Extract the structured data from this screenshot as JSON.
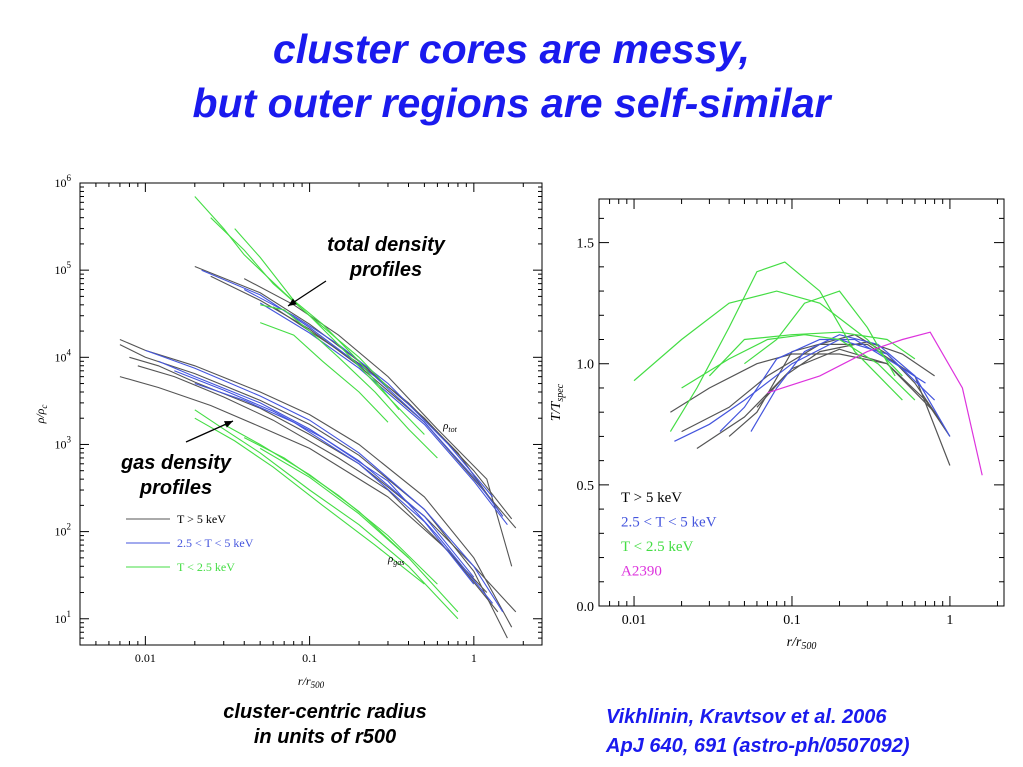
{
  "slide": {
    "title_line1": "cluster cores are messy,",
    "title_line2": "but outer regions are self-similar",
    "note_total_line1": "total density",
    "note_total_line2": "profiles",
    "note_gas_line1": "gas density",
    "note_gas_line2": "profiles",
    "caption_line1": "cluster-centric radius",
    "caption_line2": "in units of r500",
    "ref_line1": "Vikhlinin, Kravtsov et al. 2006",
    "ref_line2": "ApJ 640, 691 (astro-ph/0507092)"
  },
  "colors": {
    "hot": "#555555",
    "mid": "#4455dd",
    "cool": "#44dd44",
    "a2390": "#dd33dd",
    "title": "#1a1aee"
  },
  "chart_data": [
    {
      "type": "line",
      "xscale": "log",
      "yscale": "log",
      "xlim": [
        0.004,
        2.6
      ],
      "ylim": [
        5,
        1000000
      ],
      "xlabel": "r/r500",
      "ylabel": "ρ/ρc",
      "xticks": [
        {
          "v": 0.01,
          "label": "0.01"
        },
        {
          "v": 0.1,
          "label": "0.1"
        },
        {
          "v": 1,
          "label": "1"
        }
      ],
      "yticks": [
        {
          "v": 10,
          "base": "10",
          "exp": "1"
        },
        {
          "v": 100,
          "base": "10",
          "exp": "2"
        },
        {
          "v": 1000,
          "base": "10",
          "exp": "3"
        },
        {
          "v": 10000,
          "base": "10",
          "exp": "4"
        },
        {
          "v": 100000,
          "base": "10",
          "exp": "5"
        },
        {
          "v": 1000000,
          "base": "10",
          "exp": "6"
        }
      ],
      "annotations": [
        {
          "base": "ρ",
          "sub": "tot",
          "x": 0.65,
          "y": 1500
        },
        {
          "base": "ρ",
          "sub": "gas",
          "x": 0.3,
          "y": 45
        }
      ],
      "legend": {
        "position": "bottom-left",
        "entries": [
          {
            "group": "hot",
            "label": "T > 5 keV"
          },
          {
            "group": "mid",
            "label": "2.5 < T < 5 keV"
          },
          {
            "group": "cool",
            "label": "T < 2.5 keV"
          }
        ]
      },
      "series": [
        {
          "group": "hot",
          "x": [
            0.02,
            0.05,
            0.1,
            0.2,
            0.5,
            1,
            1.7
          ],
          "y": [
            110000,
            55000,
            24000,
            9000,
            2000,
            500,
            140
          ]
        },
        {
          "group": "hot",
          "x": [
            0.025,
            0.05,
            0.1,
            0.2,
            0.5,
            1,
            1.8
          ],
          "y": [
            85000,
            45000,
            21000,
            8000,
            1800,
            400,
            110
          ]
        },
        {
          "group": "hot",
          "x": [
            0.04,
            0.08,
            0.15,
            0.3,
            0.6,
            1.2,
            1.7
          ],
          "y": [
            80000,
            40000,
            18000,
            6000,
            1500,
            400,
            40
          ]
        },
        {
          "group": "hot",
          "x": [
            0.06,
            0.1,
            0.2,
            0.4,
            0.8,
            1.5
          ],
          "y": [
            38000,
            20000,
            8500,
            3000,
            800,
            150
          ]
        },
        {
          "group": "mid",
          "x": [
            0.022,
            0.05,
            0.1,
            0.25,
            0.5,
            1,
            1.5
          ],
          "y": [
            100000,
            52000,
            22000,
            6000,
            1800,
            420,
            150
          ]
        },
        {
          "group": "mid",
          "x": [
            0.05,
            0.1,
            0.2,
            0.5,
            1,
            1.6
          ],
          "y": [
            42000,
            19000,
            7500,
            1700,
            380,
            120
          ]
        },
        {
          "group": "mid",
          "x": [
            0.04,
            0.08,
            0.15,
            0.3,
            0.7,
            1.3
          ],
          "y": [
            60000,
            30000,
            14000,
            5000,
            1000,
            250
          ]
        },
        {
          "group": "cool",
          "x": [
            0.02,
            0.03,
            0.04,
            0.07,
            0.1,
            0.2,
            0.3
          ],
          "y": [
            700000,
            300000,
            150000,
            55000,
            30000,
            10000,
            4500
          ]
        },
        {
          "group": "cool",
          "x": [
            0.025,
            0.04,
            0.06,
            0.1,
            0.15,
            0.3,
            0.5
          ],
          "y": [
            400000,
            170000,
            70000,
            30000,
            14000,
            3500,
            1300
          ]
        },
        {
          "group": "cool",
          "x": [
            0.035,
            0.05,
            0.08,
            0.12,
            0.2,
            0.35
          ],
          "y": [
            300000,
            140000,
            45000,
            24000,
            9000,
            2500
          ]
        },
        {
          "group": "cool",
          "x": [
            0.05,
            0.07,
            0.1,
            0.15,
            0.25,
            0.4,
            0.6
          ],
          "y": [
            40000,
            35000,
            20000,
            10000,
            4000,
            1500,
            700
          ]
        },
        {
          "group": "cool",
          "x": [
            0.05,
            0.08,
            0.12,
            0.2,
            0.3
          ],
          "y": [
            25000,
            18000,
            9000,
            4000,
            1800
          ]
        },
        {
          "group": "hot",
          "x": [
            0.007,
            0.01,
            0.02,
            0.05,
            0.1,
            0.2,
            0.5,
            1,
            1.7
          ],
          "y": [
            16000,
            12000,
            8000,
            4000,
            2200,
            1000,
            250,
            50,
            8
          ]
        },
        {
          "group": "hot",
          "x": [
            0.007,
            0.01,
            0.02,
            0.05,
            0.1,
            0.2,
            0.5,
            1,
            1.6
          ],
          "y": [
            14000,
            10000,
            6500,
            3200,
            1700,
            750,
            180,
            35,
            6
          ]
        },
        {
          "group": "hot",
          "x": [
            0.008,
            0.012,
            0.02,
            0.05,
            0.1,
            0.2,
            0.5,
            1,
            1.8
          ],
          "y": [
            10000,
            8000,
            5200,
            2600,
            1300,
            600,
            150,
            40,
            12
          ]
        },
        {
          "group": "hot",
          "x": [
            0.009,
            0.015,
            0.03,
            0.06,
            0.15,
            0.3,
            0.6,
            1.2
          ],
          "y": [
            8000,
            6000,
            3500,
            1900,
            700,
            300,
            80,
            20
          ]
        },
        {
          "group": "hot",
          "x": [
            0.007,
            0.012,
            0.025,
            0.05,
            0.1,
            0.3,
            0.7,
            1.4
          ],
          "y": [
            6000,
            4500,
            2800,
            1600,
            900,
            250,
            60,
            12
          ]
        },
        {
          "group": "mid",
          "x": [
            0.01,
            0.02,
            0.05,
            0.1,
            0.2,
            0.5,
            1,
            1.5
          ],
          "y": [
            12000,
            7500,
            3600,
            1900,
            800,
            180,
            40,
            12
          ]
        },
        {
          "group": "mid",
          "x": [
            0.012,
            0.02,
            0.05,
            0.1,
            0.2,
            0.5,
            1
          ],
          "y": [
            9000,
            6000,
            3000,
            1500,
            650,
            150,
            30
          ]
        },
        {
          "group": "mid",
          "x": [
            0.015,
            0.03,
            0.06,
            0.12,
            0.3,
            0.6,
            1.3
          ],
          "y": [
            7000,
            4200,
            2400,
            1200,
            380,
            90,
            15
          ]
        },
        {
          "group": "mid",
          "x": [
            0.02,
            0.04,
            0.08,
            0.2,
            0.5,
            1
          ],
          "y": [
            5000,
            3200,
            1800,
            600,
            130,
            25
          ]
        },
        {
          "group": "cool",
          "x": [
            0.02,
            0.03,
            0.05,
            0.1,
            0.2,
            0.4,
            0.8
          ],
          "y": [
            2500,
            1500,
            800,
            300,
            120,
            40,
            10
          ]
        },
        {
          "group": "cool",
          "x": [
            0.02,
            0.035,
            0.06,
            0.12,
            0.25,
            0.5
          ],
          "y": [
            2000,
            1100,
            550,
            200,
            70,
            25
          ]
        },
        {
          "group": "cool",
          "x": [
            0.03,
            0.05,
            0.1,
            0.2,
            0.4,
            0.8
          ],
          "y": [
            1700,
            1000,
            450,
            170,
            50,
            12
          ]
        },
        {
          "group": "cool",
          "x": [
            0.04,
            0.07,
            0.15,
            0.3,
            0.6
          ],
          "y": [
            1200,
            700,
            260,
            90,
            25
          ]
        },
        {
          "group": "cool",
          "x": [
            0.05,
            0.1,
            0.2,
            0.4
          ],
          "y": [
            900,
            420,
            160,
            50
          ]
        }
      ]
    },
    {
      "type": "line",
      "xscale": "log",
      "xlim": [
        0.006,
        2.2
      ],
      "ylim": [
        0,
        1.68
      ],
      "xlabel": "r/r500",
      "ylabel": "T/Tspec",
      "xticks": [
        {
          "v": 0.01,
          "label": "0.01"
        },
        {
          "v": 0.1,
          "label": "0.1"
        },
        {
          "v": 1,
          "label": "1"
        }
      ],
      "yticks": [
        {
          "v": 0,
          "label": "0.0"
        },
        {
          "v": 0.5,
          "label": "0.5"
        },
        {
          "v": 1.0,
          "label": "1.0"
        },
        {
          "v": 1.5,
          "label": "1.5"
        }
      ],
      "legend": {
        "position": "bottom-left",
        "entries": [
          {
            "group": "hot",
            "label": "T > 5 keV"
          },
          {
            "group": "mid",
            "label": "2.5 < T < 5 keV"
          },
          {
            "group": "cool",
            "label": "T < 2.5 keV"
          },
          {
            "group": "a2390",
            "label": "A2390"
          }
        ]
      },
      "series": [
        {
          "group": "hot",
          "x": [
            0.017,
            0.03,
            0.06,
            0.1,
            0.2,
            0.4,
            0.7,
            1
          ],
          "y": [
            0.8,
            0.9,
            1.0,
            1.04,
            1.04,
            1.0,
            0.85,
            0.7
          ]
        },
        {
          "group": "hot",
          "x": [
            0.02,
            0.04,
            0.07,
            0.15,
            0.3,
            0.6,
            1
          ],
          "y": [
            0.72,
            0.82,
            0.95,
            1.08,
            1.08,
            0.95,
            0.58
          ]
        },
        {
          "group": "hot",
          "x": [
            0.025,
            0.05,
            0.1,
            0.2,
            0.4,
            0.8
          ],
          "y": [
            0.65,
            0.78,
            0.98,
            1.06,
            1.0,
            0.8
          ]
        },
        {
          "group": "hot",
          "x": [
            0.04,
            0.06,
            0.1,
            0.25,
            0.4,
            0.6,
            0.9
          ],
          "y": [
            0.7,
            0.8,
            1.05,
            1.12,
            1.04,
            0.92,
            0.75
          ]
        },
        {
          "group": "hot",
          "x": [
            0.06,
            0.09,
            0.15,
            0.3,
            0.5,
            0.8
          ],
          "y": [
            0.82,
            0.95,
            1.05,
            1.09,
            1.04,
            0.95
          ]
        },
        {
          "group": "mid",
          "x": [
            0.018,
            0.03,
            0.05,
            0.1,
            0.2,
            0.4,
            0.8
          ],
          "y": [
            0.68,
            0.75,
            0.85,
            1.0,
            1.1,
            1.04,
            0.85
          ]
        },
        {
          "group": "mid",
          "x": [
            0.035,
            0.05,
            0.08,
            0.15,
            0.25,
            0.45,
            0.7
          ],
          "y": [
            0.72,
            0.82,
            1.02,
            1.1,
            1.1,
            1.0,
            0.92
          ]
        },
        {
          "group": "mid",
          "x": [
            0.055,
            0.08,
            0.12,
            0.2,
            0.35,
            0.6,
            1
          ],
          "y": [
            0.72,
            0.9,
            1.05,
            1.12,
            1.08,
            0.95,
            0.7
          ]
        },
        {
          "group": "cool",
          "x": [
            0.01,
            0.02,
            0.04,
            0.08,
            0.15,
            0.3,
            0.5
          ],
          "y": [
            0.93,
            1.1,
            1.25,
            1.3,
            1.25,
            1.1,
            0.95
          ]
        },
        {
          "group": "cool",
          "x": [
            0.017,
            0.025,
            0.04,
            0.06,
            0.09,
            0.15,
            0.25,
            0.5
          ],
          "y": [
            0.72,
            0.9,
            1.15,
            1.38,
            1.42,
            1.3,
            1.05,
            0.85
          ]
        },
        {
          "group": "cool",
          "x": [
            0.02,
            0.04,
            0.07,
            0.12,
            0.2,
            0.35,
            0.6
          ],
          "y": [
            0.9,
            1.02,
            1.1,
            1.12,
            1.1,
            1.0,
            0.85
          ]
        },
        {
          "group": "cool",
          "x": [
            0.05,
            0.08,
            0.12,
            0.2,
            0.3,
            0.45
          ],
          "y": [
            1.0,
            1.1,
            1.25,
            1.3,
            1.15,
            0.95
          ]
        },
        {
          "group": "cool",
          "x": [
            0.03,
            0.05,
            0.1,
            0.2,
            0.4,
            0.6
          ],
          "y": [
            0.95,
            1.1,
            1.12,
            1.13,
            1.1,
            1.02
          ]
        },
        {
          "group": "a2390",
          "x": [
            0.07,
            0.15,
            0.3,
            0.5,
            0.75,
            1.2,
            1.6
          ],
          "y": [
            0.88,
            0.95,
            1.05,
            1.1,
            1.13,
            0.9,
            0.54
          ]
        }
      ]
    }
  ]
}
